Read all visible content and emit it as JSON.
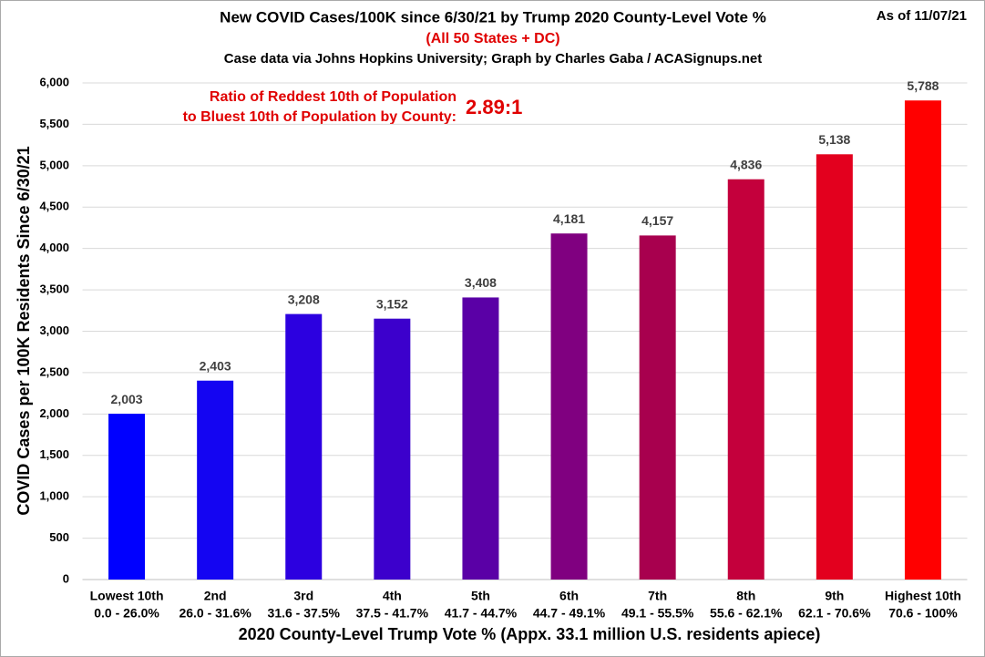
{
  "chart_data": {
    "type": "bar",
    "title": "New COVID Cases/100K since 6/30/21 by Trump 2020 County-Level Vote %",
    "subtitle": "(All 50 States + DC)",
    "source": "Case data via Johns Hopkins University; Graph by Charles Gaba / ACASignups.net",
    "date_note": "As of 11/07/21",
    "annotation": [
      "Ratio of Reddest 10th of Population",
      "to Bluest 10th of Population by County:"
    ],
    "annotation_value": "2.89:1",
    "x_label": "2020 County-Level Trump Vote % (Appx. 33.1 million U.S. residents apiece)",
    "y_label": "COVID Cases per 100K Residents Since 6/30/21",
    "categories": [
      "Lowest 10th",
      "2nd",
      "3rd",
      "4th",
      "5th",
      "6th",
      "7th",
      "8th",
      "9th",
      "Highest 10th"
    ],
    "category_ranges": [
      "0.0 - 26.0%",
      "26.0 - 31.6%",
      "31.6 - 37.5%",
      "37.5 - 41.7%",
      "41.7 - 44.7%",
      "44.7 - 49.1%",
      "49.1 - 55.5%",
      "55.6 - 62.1%",
      "62.1 - 70.6%",
      "70.6 - 100%"
    ],
    "values": [
      2003,
      2403,
      3208,
      3152,
      3408,
      4181,
      4157,
      4836,
      5138,
      5788
    ],
    "value_labels": [
      "2,003",
      "2,403",
      "3,208",
      "3,152",
      "3,408",
      "4,181",
      "4,157",
      "4,836",
      "5,138",
      "5,788"
    ],
    "colors": [
      "#0000ff",
      "#1405f2",
      "#2c00e0",
      "#3c00cc",
      "#5a00a6",
      "#800080",
      "#a8004e",
      "#c4003c",
      "#e3001e",
      "#ff0000"
    ],
    "ylim": [
      0,
      6000
    ],
    "yticks": [
      0,
      500,
      {
        "value": 1000,
        "label": "1,000"
      },
      {
        "value": 1500,
        "label": "1,500"
      },
      {
        "value": 2000,
        "label": "2,000"
      },
      {
        "value": 2500,
        "label": "2,500"
      },
      {
        "value": 3000,
        "label": "3,000"
      },
      {
        "value": 3500,
        "label": "3,500"
      },
      {
        "value": 4000,
        "label": "4,000"
      },
      {
        "value": 4500,
        "label": "4,500"
      },
      {
        "value": 5000,
        "label": "5,000"
      },
      {
        "value": 5500,
        "label": "5,500"
      },
      {
        "value": 6000,
        "label": "6,000"
      }
    ],
    "grid": true
  }
}
